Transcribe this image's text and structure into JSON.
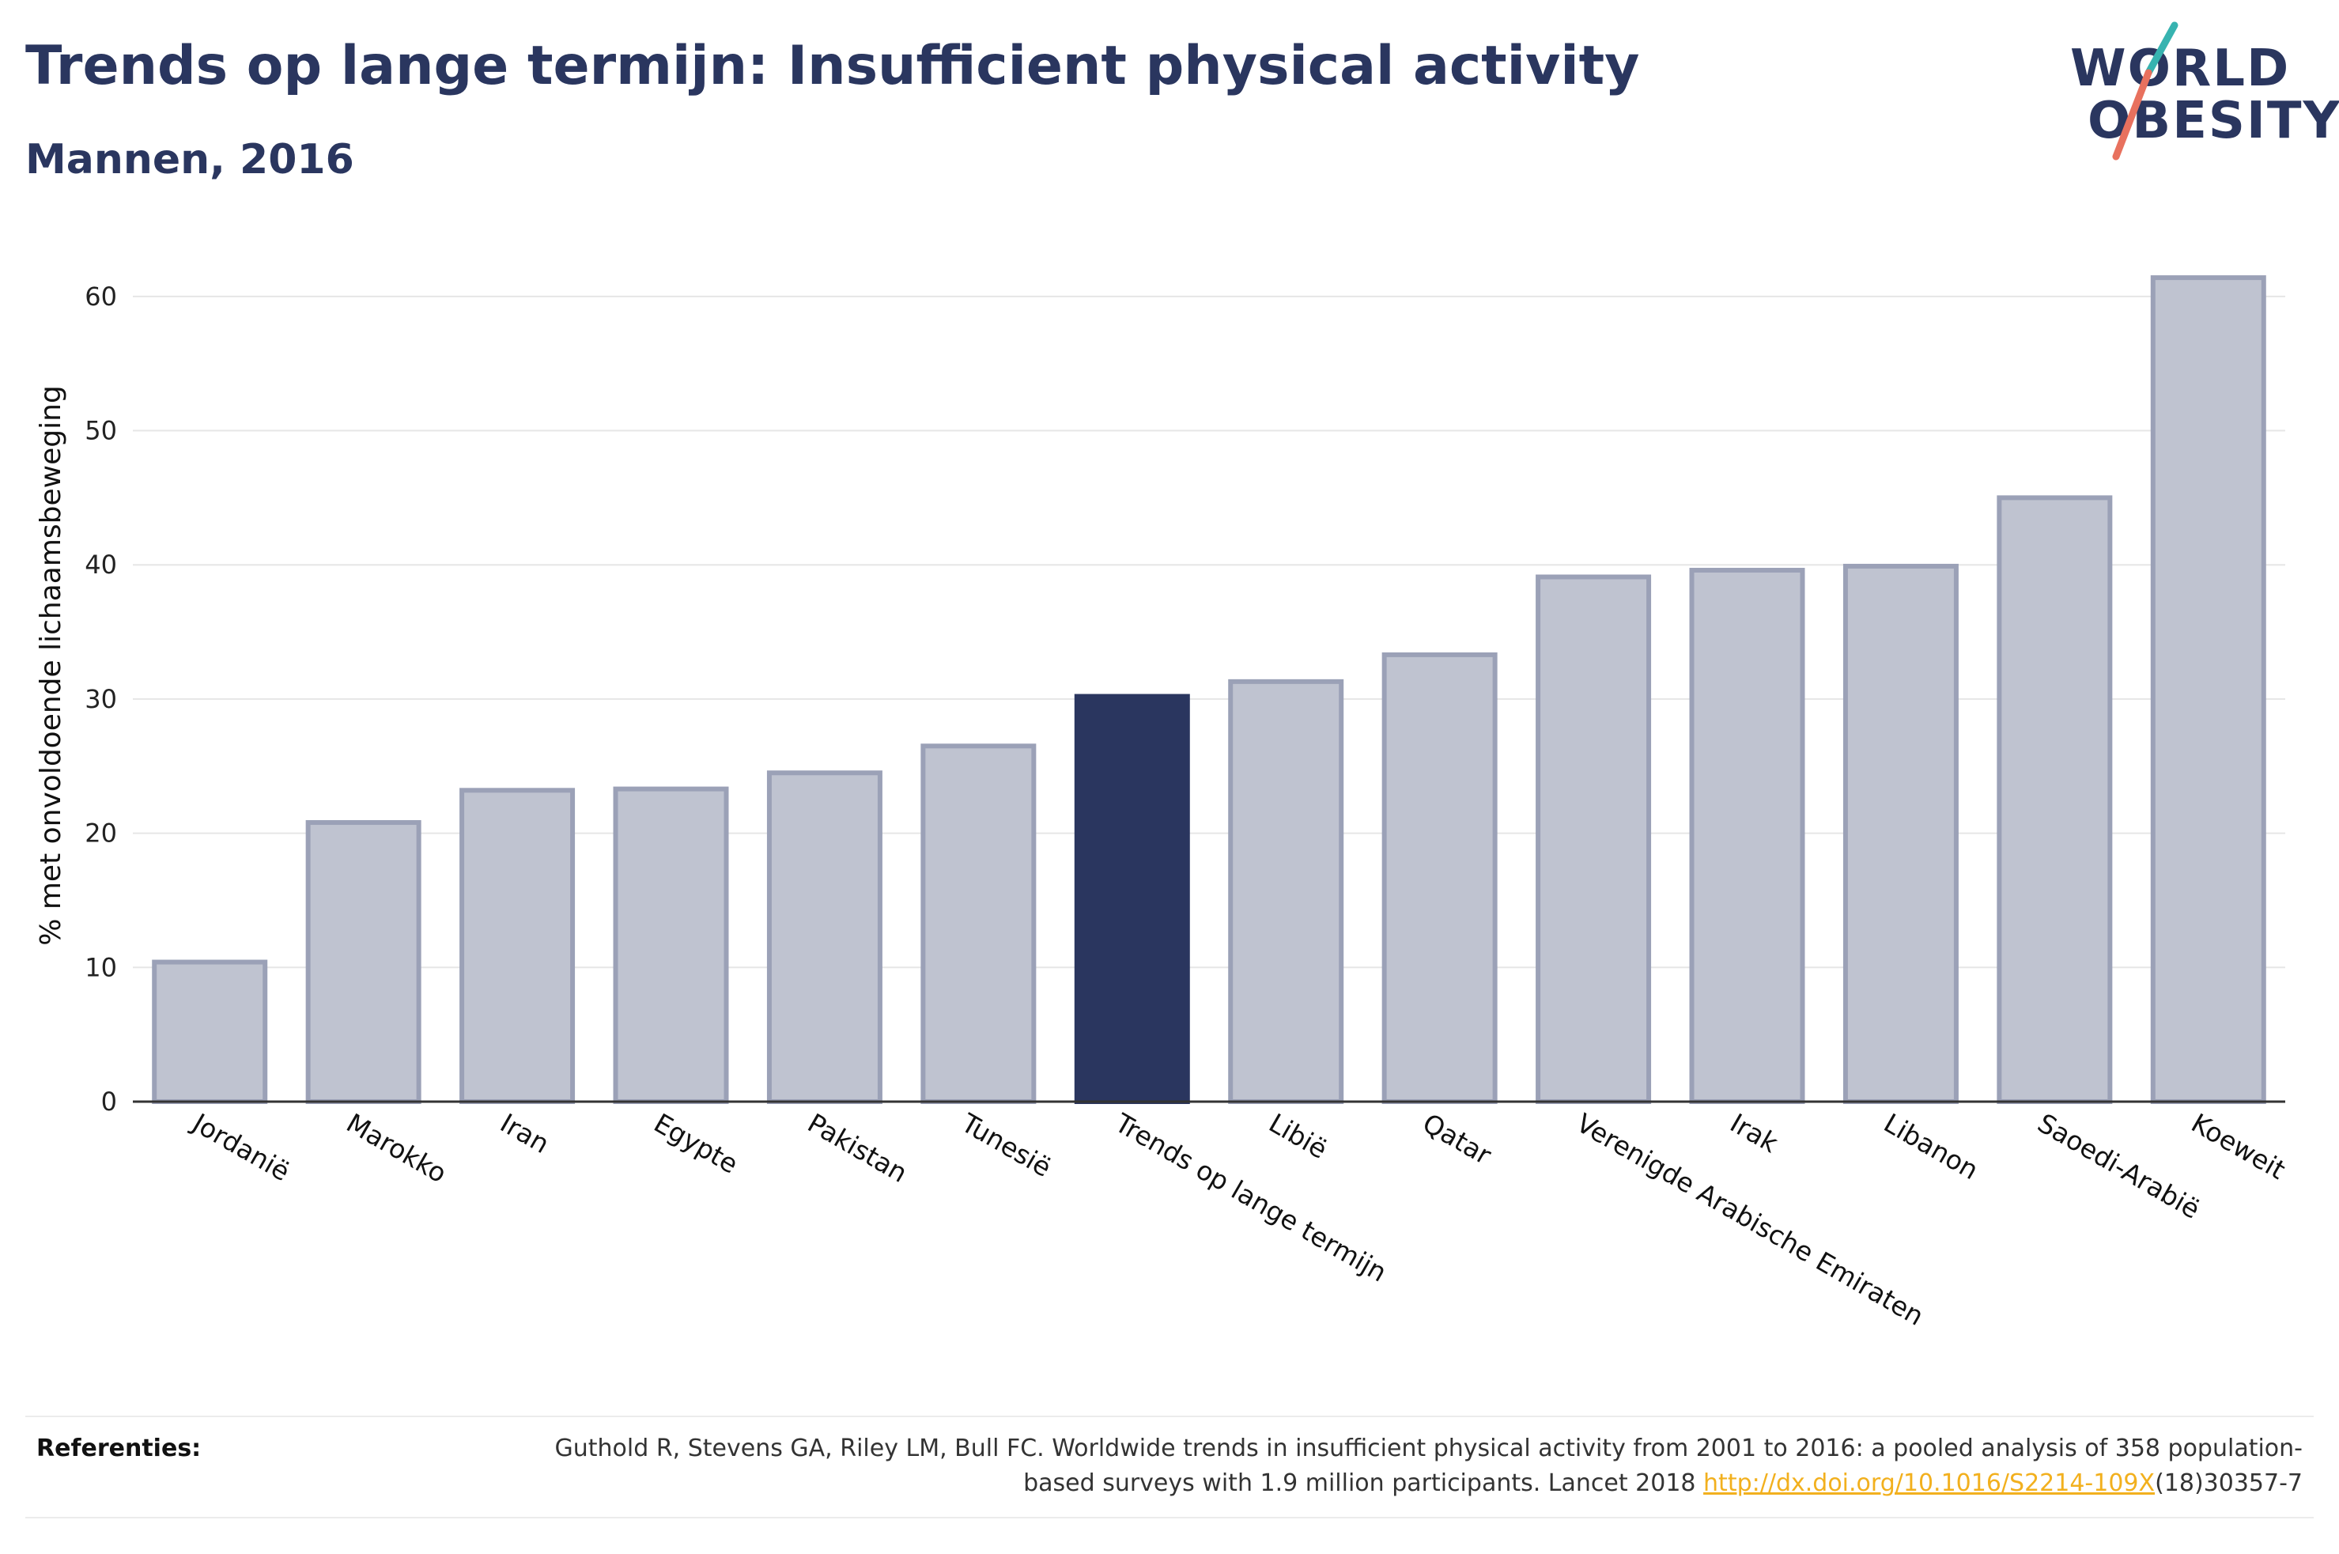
{
  "header": {
    "title": "Trends op lange termijn: Insufficient physical activity",
    "subtitle": "Mannen, 2016"
  },
  "logo": {
    "line1": "WORLD",
    "line2": "OBESITY"
  },
  "chart_data": {
    "type": "bar",
    "ylabel": "% met onvoldoende lichaamsbeweging",
    "xlabel": "",
    "ylim": [
      0,
      65
    ],
    "yticks": [
      0,
      10,
      20,
      30,
      40,
      50,
      60
    ],
    "grid": true,
    "categories": [
      "Jordanië",
      "Marokko",
      "Iran",
      "Egypte",
      "Pakistan",
      "Tunesië",
      "Trends op lange termijn",
      "Libië",
      "Qatar",
      "Verenigde Arabische Emiraten",
      "Irak",
      "Libanon",
      "Saoedi-Arabië",
      "Koeweit"
    ],
    "values": [
      10.4,
      20.8,
      23.2,
      23.3,
      24.5,
      26.5,
      30.2,
      31.3,
      33.3,
      39.1,
      39.6,
      39.9,
      45.0,
      61.4
    ],
    "highlight": "Trends op lange termijn",
    "colors": {
      "bar": "#bfc3d0",
      "bar_border": "#9ba1b7",
      "highlight": "#2a365f",
      "grid": "#e6e6e6",
      "axis": "#333333"
    }
  },
  "references": {
    "label": "Referenties:",
    "text_before": "Guthold R, Stevens GA, Riley LM, Bull FC. Worldwide trends in insufficient physical activity from 2001 to 2016: a pooled analysis of 358 population-based surveys with 1.9 million participants. Lancet 2018 ",
    "link": "http://dx.doi.org/10.1016/S2214-109X",
    "text_after": "(18)30357-7"
  }
}
